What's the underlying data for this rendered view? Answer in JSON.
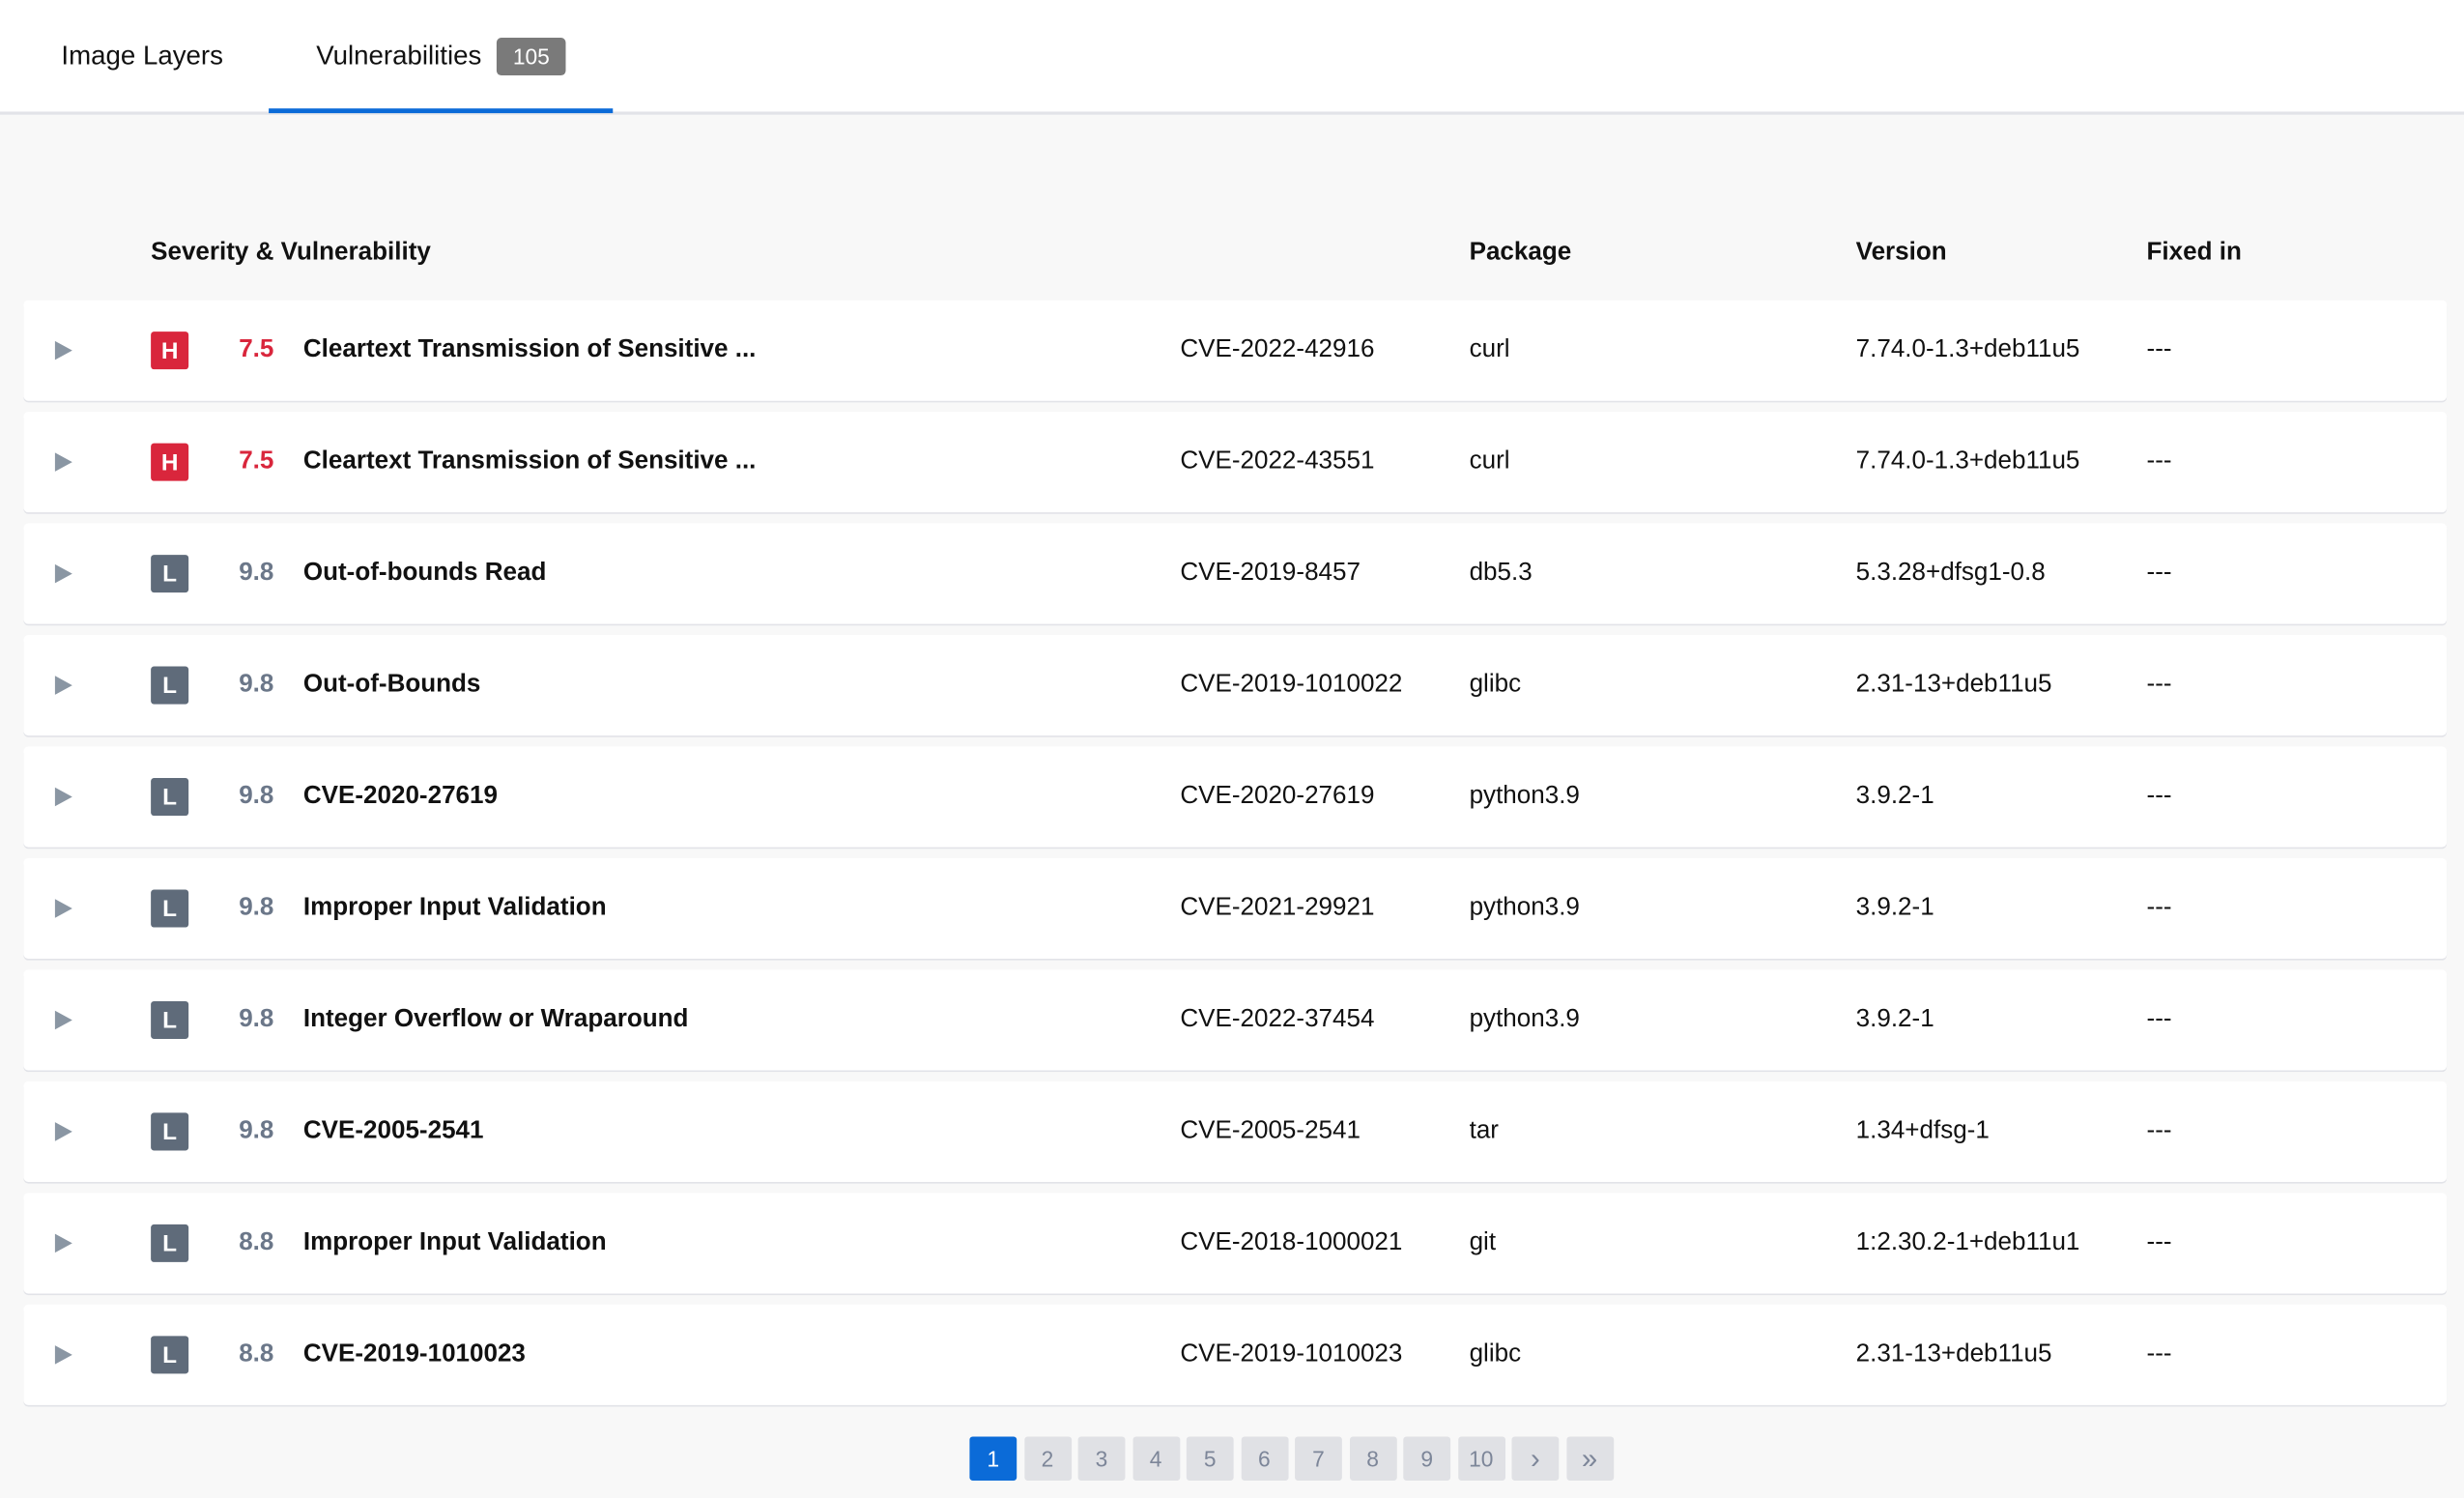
{
  "tabs": [
    {
      "label": "Image Layers"
    },
    {
      "label": "Vulnerabilities",
      "badge": "105",
      "active": true
    }
  ],
  "colors": {
    "accent": "#0b6bd8",
    "high": "#d9263c",
    "low": "#5f6b7a",
    "low_score": "#6b7789"
  },
  "table": {
    "headers": {
      "severity": "Severity & Vulnerability",
      "package": "Package",
      "version": "Version",
      "fixed": "Fixed in"
    },
    "rows": [
      {
        "sev": "H",
        "score": "7.5",
        "title": "Cleartext Transmission of Sensitive ...",
        "cve": "CVE-2022-42916",
        "package": "curl",
        "version": "7.74.0-1.3+deb11u5",
        "fixed": "---"
      },
      {
        "sev": "H",
        "score": "7.5",
        "title": "Cleartext Transmission of Sensitive ...",
        "cve": "CVE-2022-43551",
        "package": "curl",
        "version": "7.74.0-1.3+deb11u5",
        "fixed": "---"
      },
      {
        "sev": "L",
        "score": "9.8",
        "title": "Out-of-bounds Read",
        "cve": "CVE-2019-8457",
        "package": "db5.3",
        "version": "5.3.28+dfsg1-0.8",
        "fixed": "---"
      },
      {
        "sev": "L",
        "score": "9.8",
        "title": "Out-of-Bounds",
        "cve": "CVE-2019-1010022",
        "package": "glibc",
        "version": "2.31-13+deb11u5",
        "fixed": "---"
      },
      {
        "sev": "L",
        "score": "9.8",
        "title": "CVE-2020-27619",
        "cve": "CVE-2020-27619",
        "package": "python3.9",
        "version": "3.9.2-1",
        "fixed": "---"
      },
      {
        "sev": "L",
        "score": "9.8",
        "title": "Improper Input Validation",
        "cve": "CVE-2021-29921",
        "package": "python3.9",
        "version": "3.9.2-1",
        "fixed": "---"
      },
      {
        "sev": "L",
        "score": "9.8",
        "title": "Integer Overflow or Wraparound",
        "cve": "CVE-2022-37454",
        "package": "python3.9",
        "version": "3.9.2-1",
        "fixed": "---"
      },
      {
        "sev": "L",
        "score": "9.8",
        "title": "CVE-2005-2541",
        "cve": "CVE-2005-2541",
        "package": "tar",
        "version": "1.34+dfsg-1",
        "fixed": "---"
      },
      {
        "sev": "L",
        "score": "8.8",
        "title": "Improper Input Validation",
        "cve": "CVE-2018-1000021",
        "package": "git",
        "version": "1:2.30.2-1+deb11u1",
        "fixed": "---"
      },
      {
        "sev": "L",
        "score": "8.8",
        "title": "CVE-2019-1010023",
        "cve": "CVE-2019-1010023",
        "package": "glibc",
        "version": "2.31-13+deb11u5",
        "fixed": "---"
      }
    ]
  },
  "pagination": {
    "pages": [
      "1",
      "2",
      "3",
      "4",
      "5",
      "6",
      "7",
      "8",
      "9",
      "10"
    ],
    "current": "1",
    "next": "›",
    "last": "»"
  }
}
